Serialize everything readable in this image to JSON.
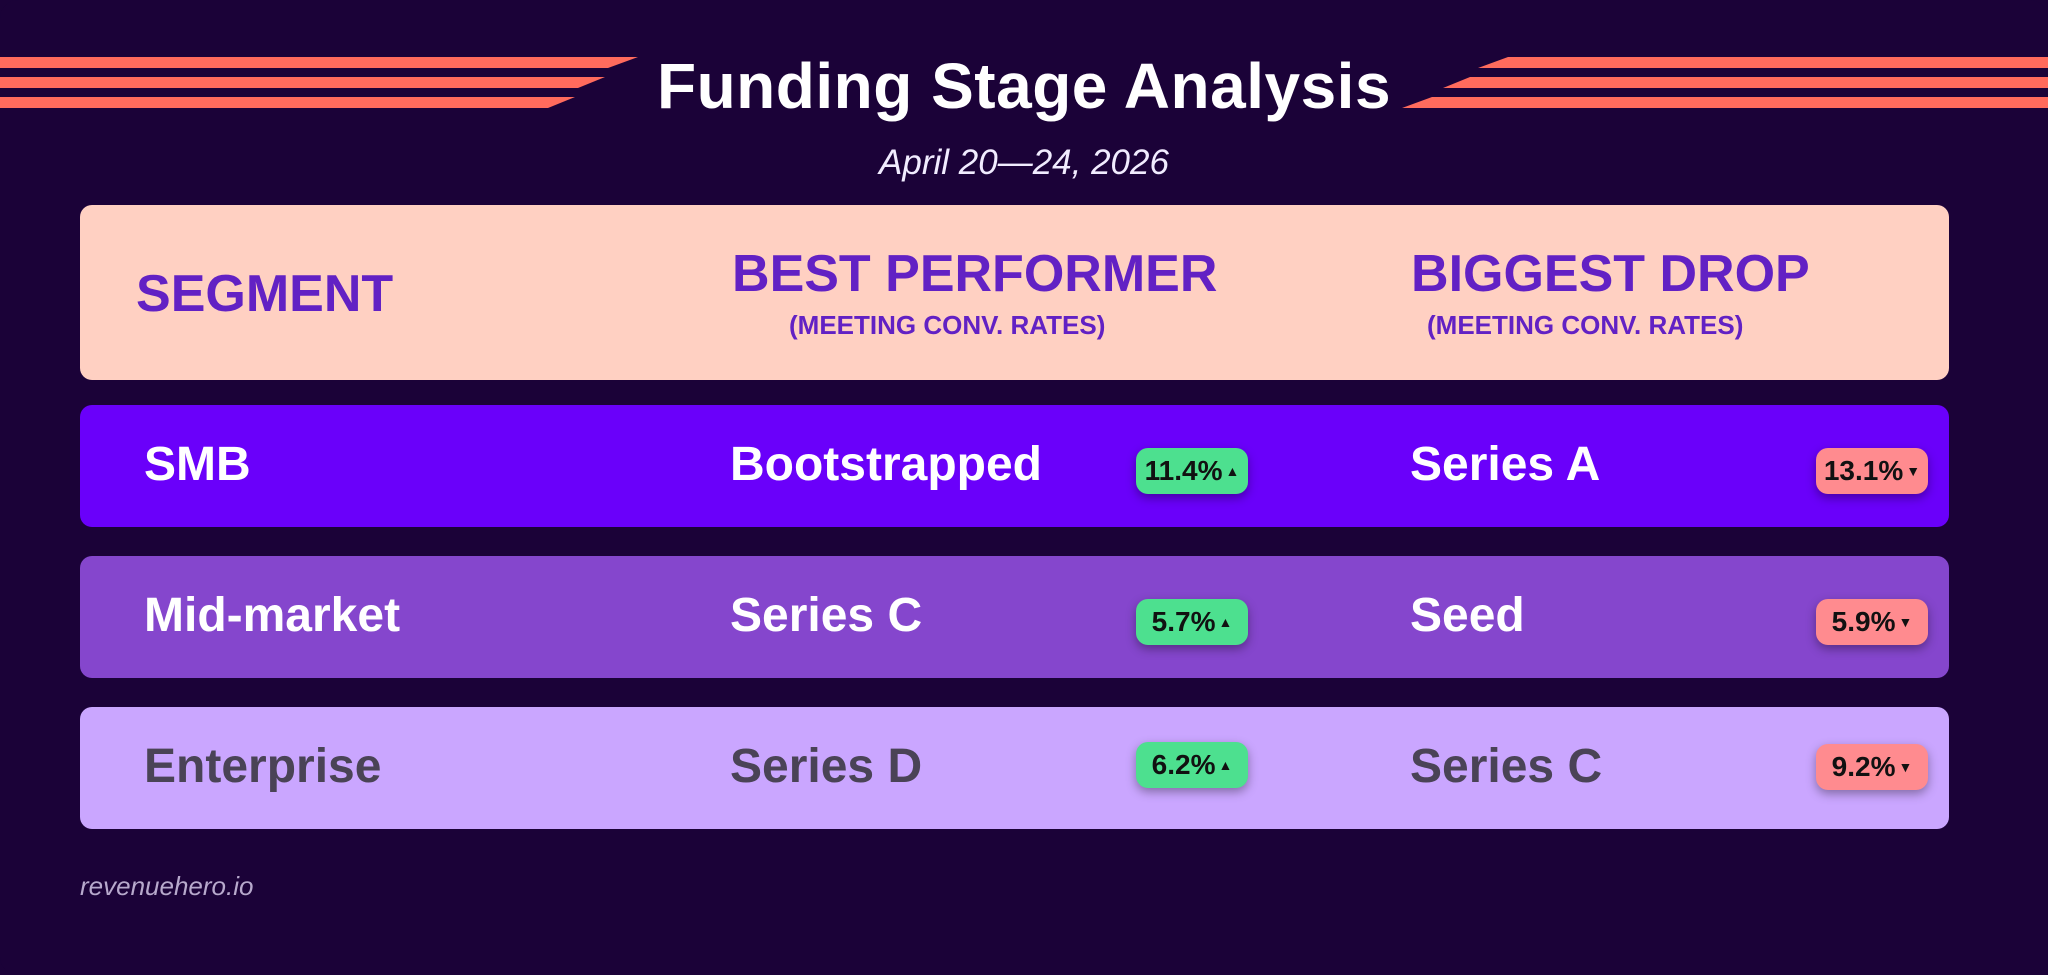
{
  "header": {
    "title": "Funding Stage Analysis",
    "date_range": "April 20—24, 2026"
  },
  "columns": {
    "segment": "Segment",
    "best_performer": "Best Performer",
    "best_performer_sub": "(Meeting Conv. Rates)",
    "biggest_drop": "Biggest Drop",
    "biggest_drop_sub": "(Meeting Conv. Rates)"
  },
  "rows": [
    {
      "segment": "SMB",
      "best_stage": "Bootstrapped",
      "best_change": "11.4%",
      "drop_stage": "Series A",
      "drop_change": "13.1%"
    },
    {
      "segment": "Mid-market",
      "best_stage": "Series C",
      "best_change": "5.7%",
      "drop_stage": "Seed",
      "drop_change": "5.9%"
    },
    {
      "segment": "Enterprise",
      "best_stage": "Series D",
      "best_change": "6.2%",
      "drop_stage": "Series C",
      "drop_change": "9.2%"
    }
  ],
  "footer": {
    "brand": "revenuehero.io"
  },
  "colors": {
    "background": "#1b0238",
    "stripe": "#ff6b5d",
    "header_panel": "#ffd0c2",
    "header_text": "#6221c4",
    "row_smb": "#6a00fa",
    "row_midmarket": "#8546cd",
    "row_enterprise": "#caa6ff",
    "positive_badge": "#4de08f",
    "negative_badge": "#ff8b8f"
  },
  "icons": {
    "up": "triangle-up-icon",
    "down": "triangle-down-icon"
  }
}
